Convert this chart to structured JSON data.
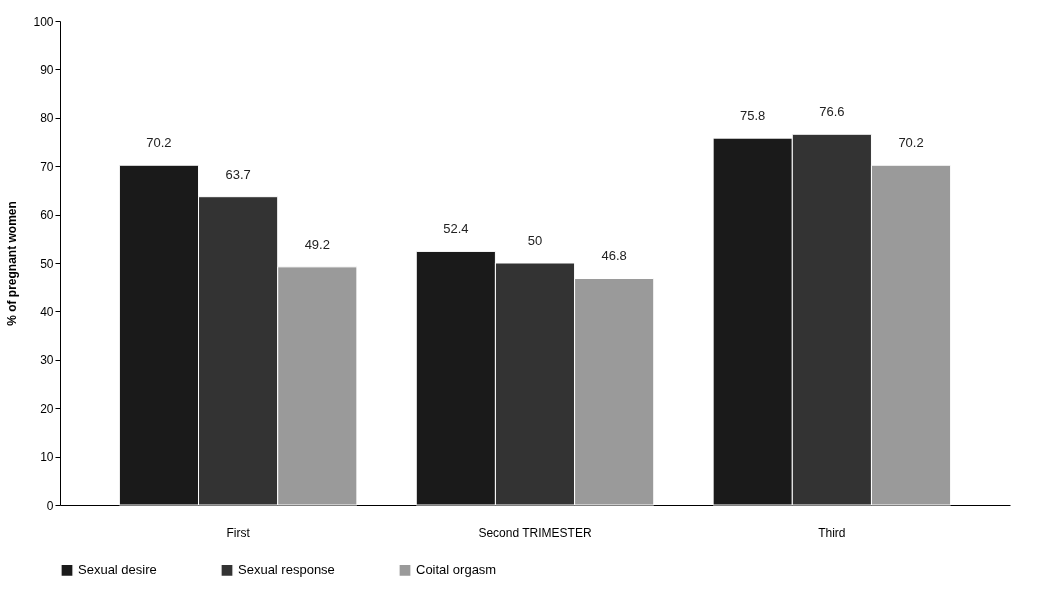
{
  "chart_data": {
    "type": "bar",
    "ylabel": "% of pregnant women",
    "categories": [
      "First",
      "Second TRIMESTER",
      "Third"
    ],
    "series": [
      {
        "name": "Sexual desire",
        "color": "#1a1a1a",
        "values": [
          70.2,
          52.4,
          75.8
        ]
      },
      {
        "name": "Sexual response",
        "color": "#333333",
        "values": [
          63.7,
          50,
          76.6
        ]
      },
      {
        "name": "Coital orgasm",
        "color": "#9a9a9a",
        "values": [
          49.2,
          46.8,
          70.2
        ]
      }
    ],
    "ylim": [
      0,
      100
    ],
    "yticks": [
      0,
      10,
      20,
      30,
      40,
      50,
      60,
      70,
      80,
      90,
      100
    ],
    "data_labels": true,
    "grid": false,
    "legend": "bottom"
  }
}
